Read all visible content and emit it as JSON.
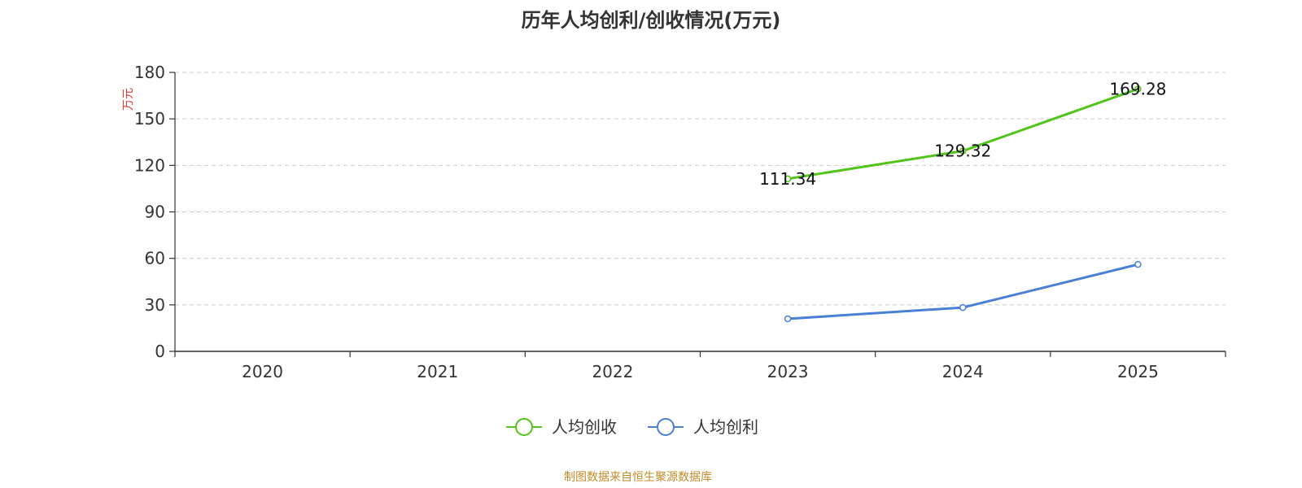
{
  "chart_data": {
    "type": "line",
    "title": "历年人均创利/创收情况(万元)",
    "ylabel": "万元",
    "xlabel": "",
    "categories": [
      "2020",
      "2021",
      "2022",
      "2023",
      "2024",
      "2025"
    ],
    "ylim": [
      0,
      180
    ],
    "yticks": [
      0,
      30,
      60,
      90,
      120,
      150,
      180
    ],
    "grid": true,
    "legend_position": "bottom",
    "series": [
      {
        "name": "人均创收",
        "color": "#52c41a",
        "values": [
          null,
          null,
          null,
          111.34,
          129.32,
          169.28
        ],
        "labels": [
          "",
          "",
          "",
          "111.34",
          "129.32",
          "169.28"
        ],
        "show_labels": true
      },
      {
        "name": "人均创利",
        "color": "#4a7fd6",
        "values": [
          null,
          null,
          null,
          21.0,
          28.3,
          56.1
        ],
        "labels": [
          "",
          "",
          "",
          "",
          "",
          ""
        ],
        "show_labels": false
      }
    ],
    "source": "制图数据来自恒生聚源数据库"
  }
}
